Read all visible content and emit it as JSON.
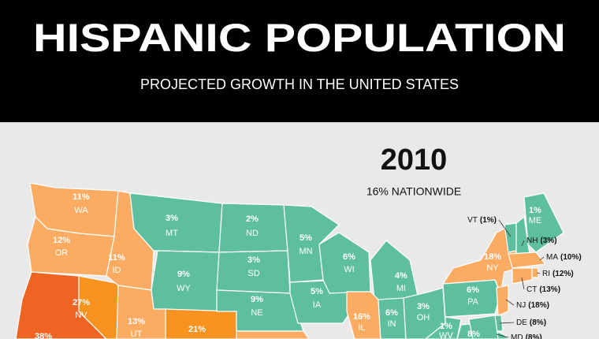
{
  "header": {
    "title": "HISPANIC POPULATION",
    "subtitle": "PROJECTED GROWTH IN THE UNITED STATES"
  },
  "map": {
    "year": "2010",
    "nationwide": "16% NATIONWIDE",
    "states": [
      {
        "abbr": "WA",
        "pct": "11%",
        "color": "#fbac62"
      },
      {
        "abbr": "OR",
        "pct": "12%",
        "color": "#fbac62"
      },
      {
        "pct": "38%",
        "color": "#f06423"
      },
      {
        "abbr": "NV",
        "pct": "27%",
        "color": "#f7931e"
      },
      {
        "abbr": "ID",
        "pct": "11%",
        "color": "#fbac62"
      },
      {
        "abbr": "MT",
        "pct": "3%",
        "color": "#5ebfa0"
      },
      {
        "abbr": "WY",
        "pct": "9%",
        "color": "#5ebfa0"
      },
      {
        "abbr": "UT",
        "pct": "13%",
        "color": "#fbac62"
      },
      {
        "pct": "21%",
        "color": "#f7931e"
      },
      {
        "abbr": "ND",
        "pct": "2%",
        "color": "#5ebfa0"
      },
      {
        "abbr": "SD",
        "pct": "3%",
        "color": "#5ebfa0"
      },
      {
        "abbr": "NE",
        "pct": "9%",
        "color": "#5ebfa0"
      },
      {
        "color": "#fbac62"
      },
      {
        "abbr": "MN",
        "pct": "5%",
        "color": "#5ebfa0"
      },
      {
        "abbr": "IA",
        "pct": "5%",
        "color": "#5ebfa0"
      },
      {
        "abbr": "WI",
        "pct": "6%",
        "color": "#5ebfa0"
      },
      {
        "abbr": "MI",
        "pct": "4%",
        "color": "#5ebfa0"
      },
      {
        "abbr": "IL",
        "pct": "16%",
        "color": "#fbac62"
      },
      {
        "abbr": "IN",
        "pct": "6%",
        "color": "#5ebfa0"
      },
      {
        "abbr": "OH",
        "pct": "3%",
        "color": "#5ebfa0"
      },
      {
        "abbr": "PA",
        "pct": "6%",
        "color": "#5ebfa0"
      },
      {
        "abbr": "NY",
        "pct": "18%",
        "color": "#fbac62"
      },
      {
        "abbr": "WV",
        "pct": "1%",
        "color": "#5ebfa0"
      },
      {
        "pct": "8%",
        "color": "#5ebfa0"
      },
      {
        "abbr": "ME",
        "pct": "1%",
        "color": "#5ebfa0"
      },
      {
        "abbr": "VT",
        "pct": "(1%)",
        "color": "#5ebfa0"
      },
      {
        "abbr": "NH",
        "pct": "(3%)",
        "color": "#5ebfa0"
      },
      {
        "abbr": "MA",
        "pct": "(10%)",
        "color": "#fbac62"
      },
      {
        "abbr": "RI",
        "pct": "(12%)",
        "color": "#fbac62"
      },
      {
        "abbr": "CT",
        "pct": "(13%)",
        "color": "#fbac62"
      },
      {
        "abbr": "NJ",
        "pct": "(18%)",
        "color": "#fbac62"
      },
      {
        "abbr": "DE",
        "pct": "(8%)",
        "color": "#5ebfa0"
      },
      {
        "abbr": "MD",
        "pct": "(8%)",
        "color": "#5ebfa0"
      }
    ]
  }
}
